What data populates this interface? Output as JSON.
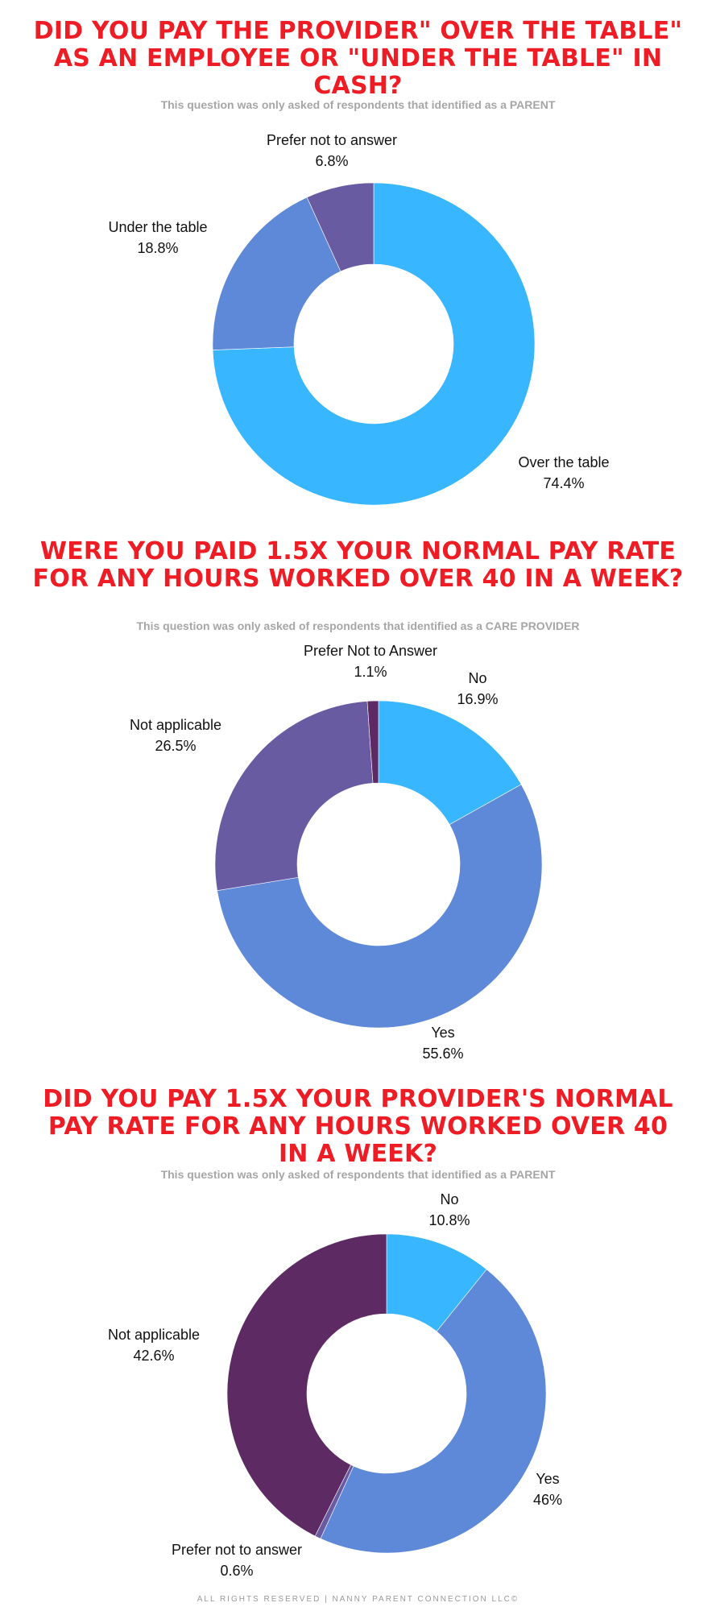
{
  "chart_data": [
    {
      "type": "pie",
      "title": "DID YOU PAY THE PROVIDER\" OVER THE TABLE\" AS AN EMPLOYEE OR \"UNDER THE TABLE\" IN CASH?",
      "subtitle": "This question was only asked of respondents that identified as a PARENT",
      "slices": [
        {
          "label": "Over the table",
          "value": 74.4,
          "value_label": "74.4%",
          "color": "#38b6ff"
        },
        {
          "label": "Under the table",
          "value": 18.8,
          "value_label": "18.8%",
          "color": "#5e88d8"
        },
        {
          "label": "Prefer not to answer",
          "value": 6.8,
          "value_label": "6.8%",
          "color": "#695ba2"
        }
      ]
    },
    {
      "type": "pie",
      "title": "WERE YOU PAID 1.5X YOUR NORMAL PAY RATE FOR ANY HOURS WORKED OVER 40 IN A WEEK?",
      "subtitle": "This question was only asked of respondents that identified as a CARE PROVIDER",
      "slices": [
        {
          "label": "No",
          "value": 16.9,
          "value_label": "16.9%",
          "color": "#38b6ff"
        },
        {
          "label": "Yes",
          "value": 55.6,
          "value_label": "55.6%",
          "color": "#5e88d8"
        },
        {
          "label": "Not applicable",
          "value": 26.5,
          "value_label": "26.5%",
          "color": "#695ba2"
        },
        {
          "label": "Prefer Not to Answer",
          "value": 1.1,
          "value_label": "1.1%",
          "color": "#5e2a64"
        }
      ]
    },
    {
      "type": "pie",
      "title": "DID YOU PAY 1.5X YOUR PROVIDER'S NORMAL PAY RATE FOR ANY HOURS WORKED OVER 40 IN A WEEK?",
      "subtitle": "This question was only asked of respondents that identified as a PARENT",
      "slices": [
        {
          "label": "No",
          "value": 10.8,
          "value_label": "10.8%",
          "color": "#38b6ff"
        },
        {
          "label": "Yes",
          "value": 46,
          "value_label": "46%",
          "color": "#5e88d8"
        },
        {
          "label": "Prefer not to answer",
          "value": 0.6,
          "value_label": "0.6%",
          "color": "#695ba2"
        },
        {
          "label": "Not applicable",
          "value": 42.6,
          "value_label": "42.6%",
          "color": "#5e2a64"
        }
      ]
    }
  ],
  "footer": "ALL RIGHTS RESERVED | NANNY PARENT CONNECTION LLC©"
}
